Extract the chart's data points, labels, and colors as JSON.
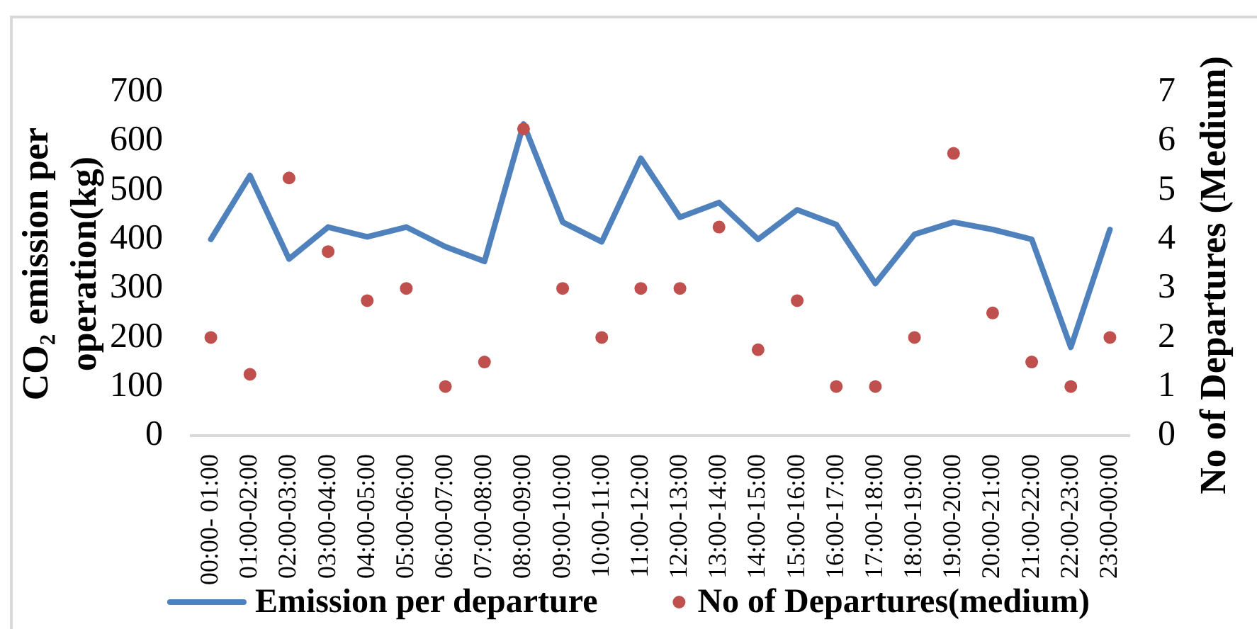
{
  "chart_data": {
    "type": "line",
    "categories": [
      "00:00- 01:00",
      "01:00-02:00",
      "02:00-03:00",
      "03:00-04:00",
      "04:00-05:00",
      "05:00-06:00",
      "06:00-07:00",
      "07:00-08:00",
      "08:00-09:00",
      "09:00-10:00",
      "10:00-11:00",
      "11:00-12:00",
      "12:00-13:00",
      "13:00-14:00",
      "14:00-15:00",
      "15:00-16:00",
      "16:00-17:00",
      "17:00-18:00",
      "18:00-19:00",
      "19:00-20:00",
      "20:00-21:00",
      "21:00-22:00",
      "22:00-23:00",
      "23:00-00:00"
    ],
    "ylabel": "CO₂ emission per operation(kg)",
    "y2label": "No of Departures (Medium)",
    "ylim": [
      0,
      700
    ],
    "yticks": [
      0,
      100,
      200,
      300,
      400,
      500,
      600,
      700
    ],
    "y2lim": [
      0,
      7
    ],
    "y2ticks": [
      0,
      1,
      2,
      3,
      4,
      5,
      6,
      7
    ],
    "grid": false,
    "legend": "bottom",
    "series": [
      {
        "name": "Emission per departure",
        "type": "line",
        "marker": "none",
        "color": "#4f81bd",
        "values": [
          400,
          530,
          360,
          425,
          405,
          425,
          385,
          355,
          635,
          435,
          395,
          565,
          445,
          475,
          400,
          460,
          430,
          310,
          410,
          435,
          420,
          400,
          180,
          420
        ]
      },
      {
        "name": "No of Departures(medium)",
        "type": "scatter",
        "marker": "circle",
        "axis": "y2",
        "color": "#c0504d",
        "values": [
          2,
          1.25,
          5.25,
          3.75,
          2.75,
          3,
          1,
          1.5,
          6.25,
          3,
          2,
          3,
          3,
          4.25,
          1.75,
          2.75,
          1,
          1,
          2,
          5.75,
          2.5,
          1.5,
          1,
          2
        ]
      }
    ]
  }
}
